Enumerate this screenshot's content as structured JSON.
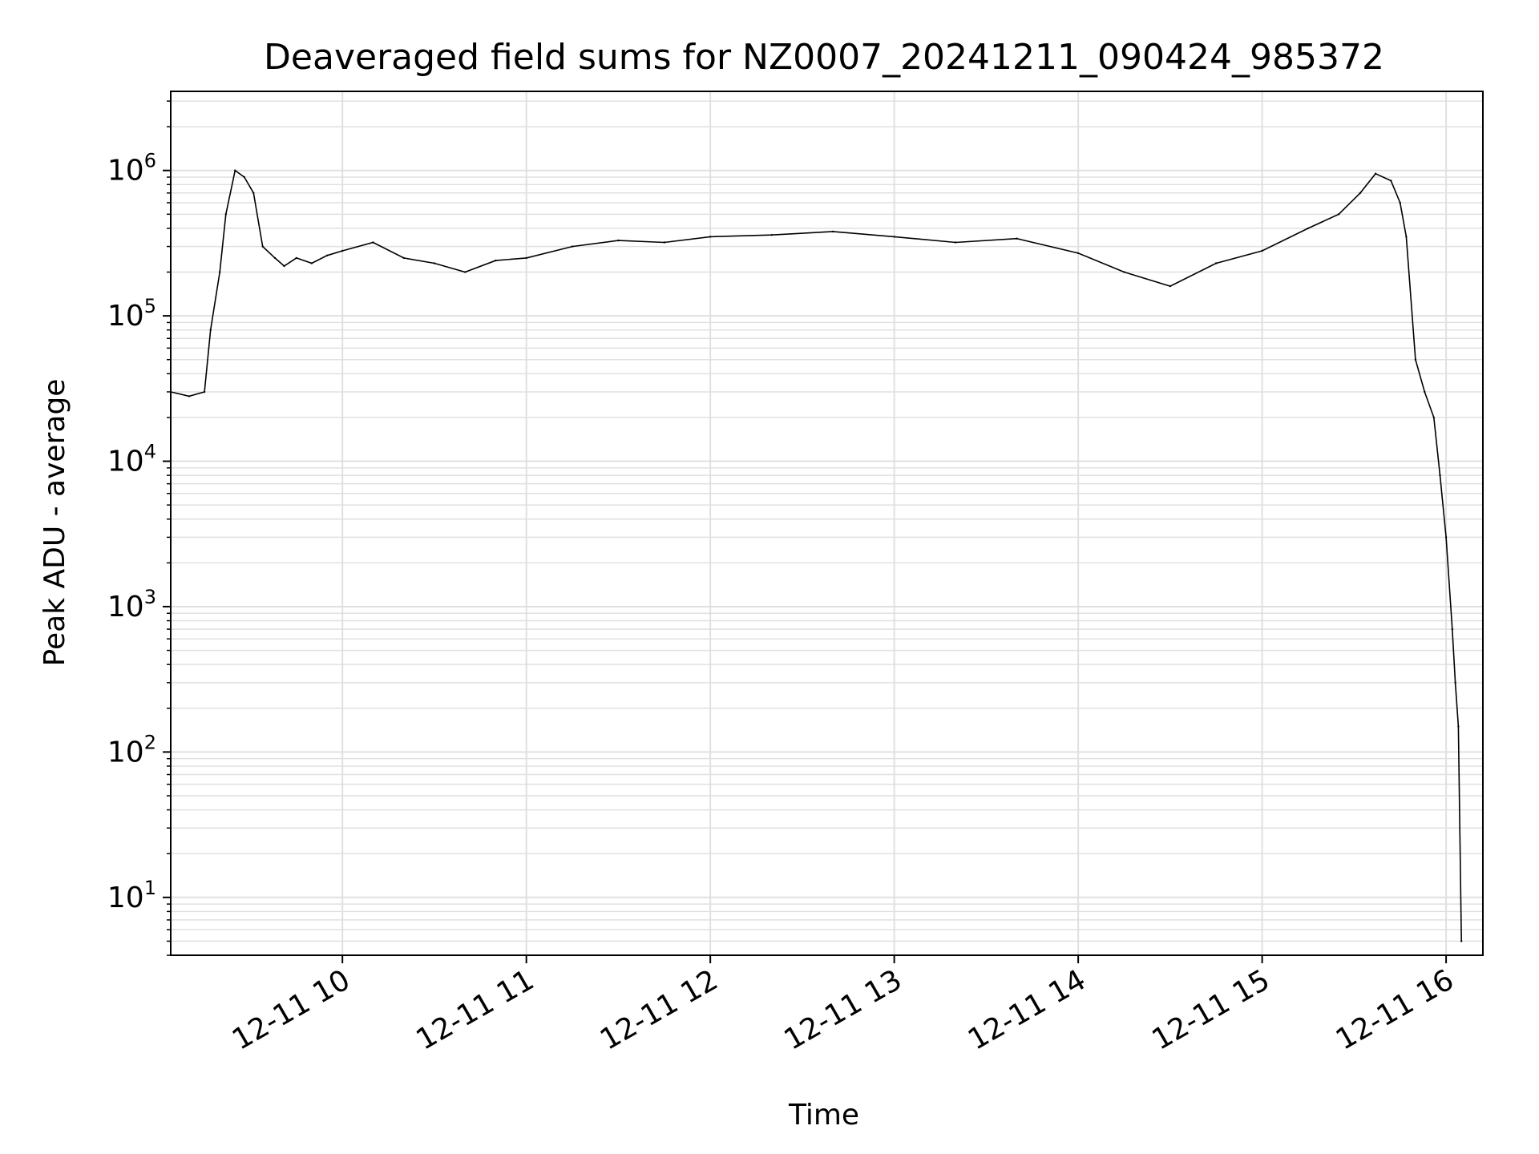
{
  "chart_data": {
    "type": "line",
    "title": "Deaveraged field sums for NZ0007_20241211_090424_985372",
    "xlabel": "Time",
    "ylabel": "Peak ADU - average",
    "yscale": "log",
    "grid": true,
    "grid_minor": true,
    "line_color": "#000000",
    "grid_color": "#e0e0e0",
    "xlim": [
      "2024-12-11 09:04",
      "2024-12-11 16:12"
    ],
    "ylim": [
      4,
      3500000
    ],
    "x_ticks": [
      {
        "value": "2024-12-11 10:00",
        "label": "12-11 10"
      },
      {
        "value": "2024-12-11 11:00",
        "label": "12-11 11"
      },
      {
        "value": "2024-12-11 12:00",
        "label": "12-11 12"
      },
      {
        "value": "2024-12-11 13:00",
        "label": "12-11 13"
      },
      {
        "value": "2024-12-11 14:00",
        "label": "12-11 14"
      },
      {
        "value": "2024-12-11 15:00",
        "label": "12-11 15"
      },
      {
        "value": "2024-12-11 16:00",
        "label": "12-11 16"
      }
    ],
    "y_ticks": [
      {
        "value": 10,
        "base": "10",
        "exp": "1"
      },
      {
        "value": 100,
        "base": "10",
        "exp": "2"
      },
      {
        "value": 1000,
        "base": "10",
        "exp": "3"
      },
      {
        "value": 10000,
        "base": "10",
        "exp": "4"
      },
      {
        "value": 100000,
        "base": "10",
        "exp": "5"
      },
      {
        "value": 1000000,
        "base": "10",
        "exp": "6"
      }
    ],
    "series": [
      {
        "x": [
          "2024-12-11 09:04",
          "2024-12-11 09:10",
          "2024-12-11 09:15",
          "2024-12-11 09:17",
          "2024-12-11 09:20",
          "2024-12-11 09:22",
          "2024-12-11 09:25",
          "2024-12-11 09:28",
          "2024-12-11 09:31",
          "2024-12-11 09:34",
          "2024-12-11 09:38",
          "2024-12-11 09:41",
          "2024-12-11 09:45",
          "2024-12-11 09:50",
          "2024-12-11 09:55",
          "2024-12-11 10:00",
          "2024-12-11 10:10",
          "2024-12-11 10:20",
          "2024-12-11 10:30",
          "2024-12-11 10:40",
          "2024-12-11 10:50",
          "2024-12-11 11:00",
          "2024-12-11 11:15",
          "2024-12-11 11:30",
          "2024-12-11 11:45",
          "2024-12-11 12:00",
          "2024-12-11 12:20",
          "2024-12-11 12:40",
          "2024-12-11 13:00",
          "2024-12-11 13:20",
          "2024-12-11 13:40",
          "2024-12-11 14:00",
          "2024-12-11 14:15",
          "2024-12-11 14:30",
          "2024-12-11 14:45",
          "2024-12-11 15:00",
          "2024-12-11 15:15",
          "2024-12-11 15:25",
          "2024-12-11 15:32",
          "2024-12-11 15:37",
          "2024-12-11 15:42",
          "2024-12-11 15:45",
          "2024-12-11 15:47",
          "2024-12-11 15:50",
          "2024-12-11 15:53",
          "2024-12-11 15:56",
          "2024-12-11 15:58",
          "2024-12-11 16:00",
          "2024-12-11 16:02",
          "2024-12-11 16:03",
          "2024-12-11 16:04",
          "2024-12-11 16:05"
        ],
        "y": [
          30000,
          28000,
          30000,
          80000,
          200000,
          500000,
          1000000,
          900000,
          700000,
          300000,
          250000,
          220000,
          250000,
          230000,
          260000,
          280000,
          320000,
          250000,
          230000,
          200000,
          240000,
          250000,
          300000,
          330000,
          320000,
          350000,
          360000,
          380000,
          350000,
          320000,
          340000,
          270000,
          200000,
          160000,
          230000,
          280000,
          400000,
          500000,
          700000,
          950000,
          850000,
          600000,
          350000,
          50000,
          30000,
          20000,
          8000,
          3000,
          700,
          300,
          150,
          5
        ]
      }
    ]
  }
}
